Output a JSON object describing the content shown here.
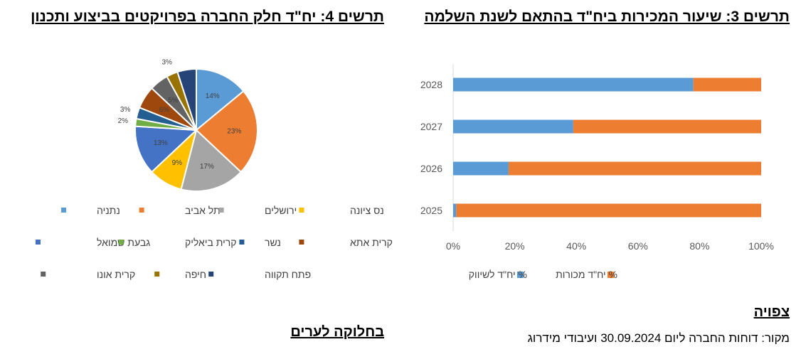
{
  "titles": {
    "chart3": "תרשים 3: שיעור המכירות ביח\"ד בהתאם לשנת השלמה",
    "chart4": "תרשים 4: יח\"ד חלק החברה בפרויקטים בביצוע ותכנון"
  },
  "notes": {
    "expected": "צפויה",
    "source": "מקור: דוחות החברה ליום 30.09.2024 ועיבודי מידרוג",
    "division": "בחלוקה לערים"
  },
  "colors": {
    "marketing": "#5B9BD5",
    "sold": "#ED7D31"
  },
  "chart_data": [
    {
      "type": "bar",
      "orientation": "horizontal",
      "stacked": "percent",
      "title": "תרשים 3: שיעור המכירות ביח\"ד בהתאם לשנת השלמה",
      "categories": [
        "2025",
        "2026",
        "2027",
        "2028"
      ],
      "series": [
        {
          "name": "% יח\"ד לשיווק",
          "values": [
            1,
            18,
            39,
            78
          ]
        },
        {
          "name": "% יח\"ד מכורות",
          "values": [
            99,
            82,
            61,
            22
          ]
        }
      ],
      "x_ticks": [
        "0%",
        "20%",
        "40%",
        "60%",
        "80%",
        "100%"
      ],
      "xlim": [
        0,
        100
      ],
      "legend": "bottom",
      "grid": false
    },
    {
      "type": "pie",
      "title": "תרשים 4: יח\"ד חלק החברה בפרויקטים בביצוע ותכנון",
      "slices": [
        {
          "label": "נתניה",
          "value": 14,
          "color": "#5B9BD5",
          "display": "14%"
        },
        {
          "label": "תל אביב",
          "value": 23,
          "color": "#ED7D31",
          "display": "23%"
        },
        {
          "label": "ירושלים",
          "value": 17,
          "color": "#A5A5A5",
          "display": "17%"
        },
        {
          "label": "נס ציונה",
          "value": 9,
          "color": "#FFC000",
          "display": "9%"
        },
        {
          "label": "גבעת שמואל",
          "value": 13,
          "color": "#4472C4",
          "display": "13%"
        },
        {
          "label": "קרית ביאליק",
          "value": 2,
          "color": "#70AD47",
          "display": "2%"
        },
        {
          "label": "נשר",
          "value": 3,
          "color": "#255E91",
          "display": "3%"
        },
        {
          "label": "קרית אתא",
          "value": 6,
          "color": "#9E480E",
          "display": "6%"
        },
        {
          "label": "קרית אונו",
          "value": 5,
          "color": "#636363",
          "display": "5%"
        },
        {
          "label": "חיפה",
          "value": 3,
          "color": "#997300",
          "display": "3%"
        },
        {
          "label": "פתח תקווה",
          "value": 5,
          "color": "#264478",
          "display": ""
        }
      ],
      "legend": "bottom"
    }
  ]
}
